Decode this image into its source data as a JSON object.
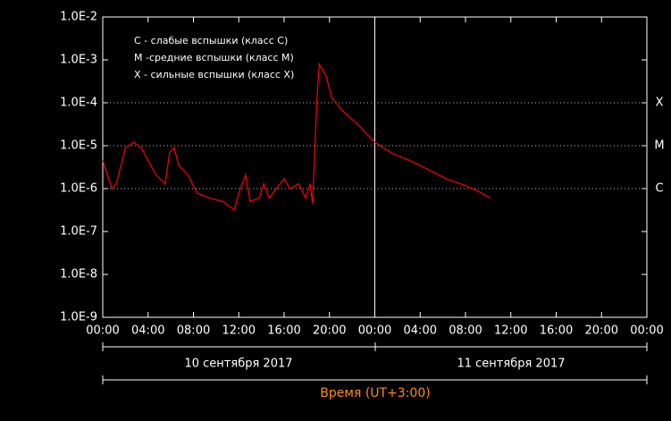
{
  "chart_data": {
    "type": "line",
    "x": [
      0,
      0.8,
      1.2,
      2.0,
      2.75,
      3.4,
      3.9,
      4.7,
      5.5,
      5.9,
      6.3,
      6.7,
      7.5,
      8.3,
      9.4,
      10.6,
      11.6,
      12.0,
      12.6,
      13.0,
      13.8,
      14.2,
      14.7,
      15.3,
      16.0,
      16.5,
      17.3,
      17.9,
      18.3,
      18.5,
      18.65,
      18.9,
      19.1,
      19.7,
      20.2,
      21.2,
      22.4,
      24.0,
      25.6,
      27.1,
      28.7,
      30.3,
      31.9,
      33.0,
      34.2
    ],
    "values": [
      4.5e-06,
      1e-06,
      1.3e-06,
      9e-06,
      1.2e-05,
      9e-06,
      5e-06,
      2.1e-06,
      1.3e-06,
      7e-06,
      9e-06,
      3.5e-06,
      2.1e-06,
      8e-07,
      6e-07,
      5e-07,
      3.2e-07,
      8e-07,
      2.1e-06,
      5e-07,
      6e-07,
      1.3e-06,
      6e-07,
      1e-06,
      1.7e-06,
      1e-06,
      1.3e-06,
      6e-07,
      1.3e-06,
      4.5e-07,
      3.5e-06,
      0.00013,
      0.0008,
      0.00043,
      0.00013,
      6.3e-05,
      3.3e-05,
      1.2e-05,
      6.5e-06,
      4.5e-06,
      2.8e-06,
      1.7e-06,
      1.2e-06,
      9e-07,
      6e-07
    ],
    "color": "#ff0000",
    "log_y": true,
    "ylim": [
      1e-09,
      0.01
    ],
    "yticks": [
      {
        "value": 1e-09,
        "label": "1.0E-9"
      },
      {
        "value": 1e-08,
        "label": "1.0E-8"
      },
      {
        "value": 1e-07,
        "label": "1.0E-7"
      },
      {
        "value": 1e-06,
        "label": "1.0E-6"
      },
      {
        "value": 1e-05,
        "label": "1.0E-5"
      },
      {
        "value": 0.0001,
        "label": "1.0E-4"
      },
      {
        "value": 0.001,
        "label": "1.0E-3"
      },
      {
        "value": 0.01,
        "label": "1.0E-2"
      }
    ],
    "xlim": [
      0,
      48
    ],
    "xticks": [
      {
        "value": 0,
        "label": "00:00"
      },
      {
        "value": 4,
        "label": "04:00"
      },
      {
        "value": 8,
        "label": "08:00"
      },
      {
        "value": 12,
        "label": "12:00"
      },
      {
        "value": 16,
        "label": "16:00"
      },
      {
        "value": 20,
        "label": "20:00"
      },
      {
        "value": 24,
        "label": "00:00"
      },
      {
        "value": 28,
        "label": "04:00"
      },
      {
        "value": 32,
        "label": "08:00"
      },
      {
        "value": 36,
        "label": "12:00"
      },
      {
        "value": 40,
        "label": "16:00"
      },
      {
        "value": 44,
        "label": "20:00"
      },
      {
        "value": 48,
        "label": "00:00"
      }
    ],
    "class_levels": [
      {
        "value": 0.0001,
        "label": "X"
      },
      {
        "value": 1e-05,
        "label": "M"
      },
      {
        "value": 1e-06,
        "label": "C"
      }
    ],
    "day_boundary": 24,
    "annotations": [
      "С - слабые вспышки (класс С)",
      "М -средние вспышки (класс М)",
      "Х - сильные вспышки (класс Х)"
    ],
    "date_labels": [
      "10 сентября 2017",
      "11 сентября 2017"
    ],
    "xlabel": "Время (UT+3:00)"
  }
}
